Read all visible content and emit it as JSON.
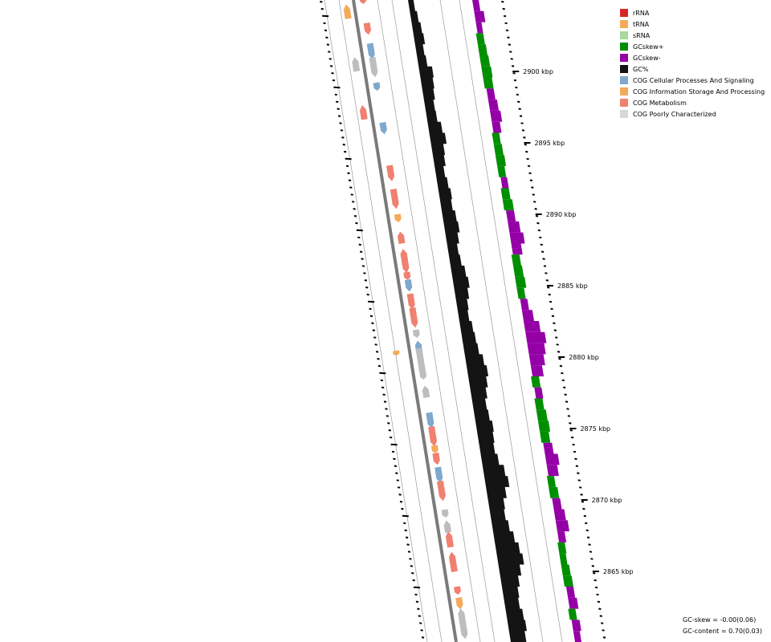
{
  "legend": [
    {
      "label": "rRNA",
      "color": "#d62728"
    },
    {
      "label": "tRNA",
      "color": "#f4a95b"
    },
    {
      "label": "sRNA",
      "color": "#a6d99a"
    },
    {
      "label": "GCskew+",
      "color": "#008f00"
    },
    {
      "label": "GCskew-",
      "color": "#9400a6"
    },
    {
      "label": "GC%",
      "color": "#141414"
    },
    {
      "label": "COG Cellular Processes And Signaling",
      "color": "#7ea9cc"
    },
    {
      "label": "COG Information Storage And Processing",
      "color": "#f4a95b"
    },
    {
      "label": "COG Metabolism",
      "color": "#f08070"
    },
    {
      "label": "COG Poorly Characterized",
      "color": "#d7d7d7"
    }
  ],
  "ticks": [
    "2900 kbp",
    "2895 kbp",
    "2890 kbp",
    "2885 kbp",
    "2880 kbp",
    "2875 kbp",
    "2870 kbp",
    "2865 kbp"
  ],
  "stats": {
    "gc_skew": "GC-skew = -0.00(0.06)",
    "gc_content": "GC-content = 0.70(0.03)"
  },
  "colors": {
    "metabolism": "#f08070",
    "cellular": "#7ea9cc",
    "info": "#f4a95b",
    "poorly": "#bdbdbd",
    "gc": "#141414",
    "skew_pos": "#008f00",
    "skew_neg": "#9400a6"
  },
  "outer_genes": [
    {
      "t": 0.018,
      "cat": "info",
      "dir": "fwd"
    },
    {
      "t": 0.1,
      "cat": "poorly",
      "dir": "fwd"
    },
    {
      "t": 0.175,
      "cat": "metabolism",
      "dir": "fwd"
    }
  ],
  "inner_genes": [
    {
      "t": 0.0,
      "cat": "metabolism",
      "dir": "rev"
    },
    {
      "t": 0.045,
      "cat": "metabolism",
      "dir": "rev"
    },
    {
      "t": 0.08,
      "cat": "cellular",
      "dir": "rev"
    },
    {
      "t": 0.105,
      "cat": "poorly",
      "dir": "rev"
    },
    {
      "t": 0.135,
      "cat": "cellular",
      "dir": "rev"
    },
    {
      "t": 0.2,
      "cat": "cellular",
      "dir": "rev"
    },
    {
      "t": 0.27,
      "cat": "metabolism",
      "dir": "rev"
    },
    {
      "t": 0.31,
      "cat": "metabolism",
      "dir": "rev"
    },
    {
      "t": 0.34,
      "cat": "info",
      "dir": "rev"
    },
    {
      "t": 0.37,
      "cat": "metabolism",
      "dir": "fwd"
    },
    {
      "t": 0.4,
      "cat": "metabolism",
      "dir": "fwd"
    },
    {
      "t": 0.41,
      "cat": "metabolism",
      "dir": "rev"
    },
    {
      "t": 0.43,
      "cat": "metabolism",
      "dir": "rev"
    },
    {
      "t": 0.445,
      "cat": "cellular",
      "dir": "rev"
    },
    {
      "t": 0.47,
      "cat": "metabolism",
      "dir": "rev"
    },
    {
      "t": 0.495,
      "cat": "metabolism",
      "dir": "rev"
    },
    {
      "t": 0.52,
      "cat": "poorly",
      "dir": "rev"
    },
    {
      "t": 0.54,
      "cat": "cellular",
      "dir": "fwd"
    },
    {
      "t": 0.555,
      "cat": "poorly",
      "dir": "rev"
    },
    {
      "t": 0.565,
      "cat": "poorly",
      "dir": "fwd"
    },
    {
      "t": 0.585,
      "cat": "poorly",
      "dir": "rev"
    },
    {
      "t": 0.61,
      "cat": "poorly",
      "dir": "fwd"
    },
    {
      "t": 0.655,
      "cat": "cellular",
      "dir": "rev"
    },
    {
      "t": 0.68,
      "cat": "metabolism",
      "dir": "rev"
    },
    {
      "t": 0.7,
      "cat": "info",
      "dir": "rev"
    },
    {
      "t": 0.715,
      "cat": "metabolism",
      "dir": "rev"
    },
    {
      "t": 0.74,
      "cat": "cellular",
      "dir": "rev"
    },
    {
      "t": 0.765,
      "cat": "metabolism",
      "dir": "rev"
    },
    {
      "t": 0.8,
      "cat": "poorly",
      "dir": "rev"
    },
    {
      "t": 0.82,
      "cat": "poorly",
      "dir": "fwd"
    },
    {
      "t": 0.84,
      "cat": "metabolism",
      "dir": "fwd"
    },
    {
      "t": 0.875,
      "cat": "metabolism",
      "dir": "fwd"
    },
    {
      "t": 0.92,
      "cat": "metabolism",
      "dir": "rev"
    },
    {
      "t": 0.94,
      "cat": "info",
      "dir": "rev"
    },
    {
      "t": 0.96,
      "cat": "poorly",
      "dir": "fwd"
    },
    {
      "t": 0.98,
      "cat": "poorly",
      "dir": "rev"
    }
  ],
  "third_genes": [
    {
      "t": 0.55,
      "cat": "info",
      "dir": "rev"
    }
  ],
  "gc_values": [
    0.2,
    0.35,
    0.5,
    0.6,
    0.4,
    0.5,
    0.9,
    0.8,
    0.7,
    0.55,
    0.6,
    0.9,
    1.1,
    0.8,
    0.7,
    0.5,
    0.65,
    0.8,
    0.7,
    0.9,
    1.0,
    0.8,
    0.6,
    0.7,
    0.95,
    1.1,
    0.9,
    0.7,
    0.6,
    0.8,
    0.9,
    1.0,
    1.3,
    1.5,
    1.3,
    1.1,
    0.9,
    1.0,
    1.2,
    1.1,
    1.0,
    1.2,
    1.6,
    1.8,
    1.4,
    1.1,
    1.0,
    1.2,
    1.5,
    1.8,
    2.0,
    1.6,
    1.3,
    1.1,
    1.0,
    1.2,
    1.3,
    1.1
  ],
  "skew_values": [
    -0.4,
    -0.8,
    -0.3,
    0.5,
    0.6,
    0.7,
    0.8,
    0.7,
    -0.5,
    -0.7,
    -0.9,
    -0.6,
    0.5,
    0.6,
    0.7,
    0.5,
    -0.4,
    0.6,
    0.8,
    -0.6,
    -1.0,
    -1.3,
    -0.8,
    0.6,
    0.7,
    0.8,
    0.5,
    -0.5,
    -0.9,
    -1.5,
    -2.0,
    -1.7,
    -1.4,
    -1.0,
    0.6,
    -0.5,
    0.6,
    0.8,
    0.9,
    0.7,
    -0.7,
    -1.2,
    -0.9,
    0.5,
    0.7,
    -0.6,
    -0.9,
    -1.1,
    -0.5,
    0.5,
    0.4,
    0.6,
    0.7,
    -0.5,
    -0.7,
    0.5,
    -0.6,
    -0.4
  ]
}
